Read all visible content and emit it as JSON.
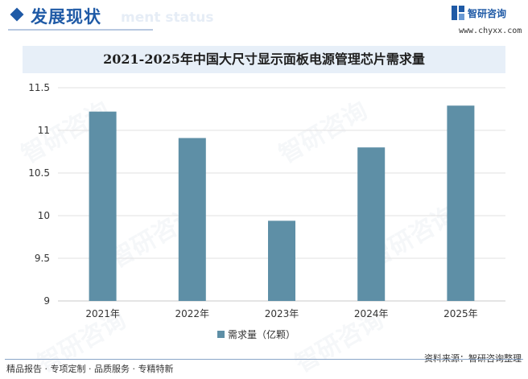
{
  "header": {
    "section_title": "发展现状",
    "ghost_text": "ment status",
    "logo_name": "智研咨询",
    "logo_url": "www.chyxx.com"
  },
  "chart_data": {
    "type": "bar",
    "title": "2021-2025年中国大尺寸显示面板电源管理芯片需求量",
    "categories": [
      "2021年",
      "2022年",
      "2023年",
      "2024年",
      "2025年"
    ],
    "series": [
      {
        "name": "需求量（亿颗）",
        "values": [
          11.22,
          10.91,
          9.94,
          10.8,
          11.29
        ],
        "color": "#5e8fa6"
      }
    ],
    "ylim": [
      9,
      11.5
    ],
    "yticks": [
      "9",
      "9.5",
      "10",
      "10.5",
      "11",
      "11.5"
    ],
    "grid": true,
    "legend_position": "bottom"
  },
  "footer": {
    "left_text": "精品报告 · 专项定制 · 品质服务 · 专精特新",
    "source_text": "资料来源：智研咨询整理"
  },
  "watermark_text": "智研咨询",
  "colors": {
    "brand": "#1f5aa6",
    "bar": "#5e8fa6",
    "grid": "#e2e2e2",
    "axis": "#c8c8c8"
  }
}
